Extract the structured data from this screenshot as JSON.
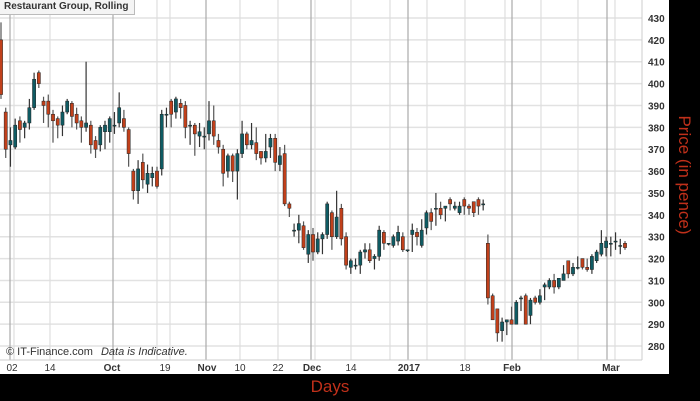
{
  "chart_data": {
    "type": "candlestick",
    "title": "Restaurant Group, Rolling",
    "xlabel": "Days",
    "ylabel": "Price (in pence)",
    "ylim": [
      275,
      432
    ],
    "yticks": [
      280,
      290,
      300,
      310,
      320,
      330,
      340,
      350,
      360,
      370,
      380,
      390,
      400,
      410,
      420,
      430
    ],
    "xticks": [
      "02",
      "14",
      "Oct",
      "19",
      "Nov",
      "10",
      "22",
      "Dec",
      "14",
      "2017",
      "18",
      "Feb",
      "Mar"
    ],
    "xticks_bold": [
      "Oct",
      "Nov",
      "Dec",
      "2017",
      "Feb",
      "Mar"
    ],
    "grid": true,
    "colors": {
      "up": "#0f5b63",
      "down": "#c1401b",
      "wick": "#222222"
    },
    "ohlc_fields": [
      "open",
      "high",
      "low",
      "close"
    ],
    "candles": [
      [
        420,
        428,
        393,
        395
      ],
      [
        387,
        389,
        366,
        370
      ],
      [
        372,
        380,
        362,
        374
      ],
      [
        371,
        384,
        370,
        381
      ],
      [
        383,
        385,
        373,
        379
      ],
      [
        380,
        383,
        375,
        382
      ],
      [
        382,
        393,
        379,
        389
      ],
      [
        389,
        405,
        388,
        402
      ],
      [
        405,
        406,
        398,
        400
      ],
      [
        392,
        394,
        382,
        390
      ],
      [
        392,
        395,
        380,
        386
      ],
      [
        386,
        388,
        373,
        383
      ],
      [
        384,
        385,
        375,
        381
      ],
      [
        381,
        390,
        376,
        387
      ],
      [
        387,
        393,
        386,
        392
      ],
      [
        391,
        392,
        380,
        385
      ],
      [
        386,
        389,
        379,
        382
      ],
      [
        383,
        385,
        373,
        380
      ],
      [
        380,
        410,
        378,
        382
      ],
      [
        381,
        383,
        368,
        372
      ],
      [
        374,
        376,
        366,
        370
      ],
      [
        372,
        381,
        369,
        380
      ],
      [
        378,
        383,
        370,
        381
      ],
      [
        378,
        385,
        373,
        384
      ],
      [
        381,
        387,
        377,
        381
      ],
      [
        382,
        396,
        380,
        389
      ],
      [
        384,
        388,
        378,
        380
      ],
      [
        379,
        380,
        362,
        368
      ],
      [
        360,
        361,
        347,
        351
      ],
      [
        351,
        365,
        345,
        361
      ],
      [
        364,
        368,
        352,
        356
      ],
      [
        354,
        363,
        350,
        359
      ],
      [
        357,
        362,
        353,
        359
      ],
      [
        360,
        362,
        352,
        353
      ],
      [
        361,
        388,
        358,
        386
      ],
      [
        386,
        389,
        380,
        386
      ],
      [
        392,
        393,
        380,
        386
      ],
      [
        387,
        394,
        384,
        393
      ],
      [
        391,
        393,
        384,
        389
      ],
      [
        390,
        392,
        375,
        380
      ],
      [
        381,
        383,
        372,
        381
      ],
      [
        381,
        382,
        367,
        377
      ],
      [
        376,
        382,
        371,
        378
      ],
      [
        376,
        380,
        370,
        376
      ],
      [
        377,
        392,
        374,
        383
      ],
      [
        383,
        390,
        372,
        376
      ],
      [
        374,
        377,
        368,
        371
      ],
      [
        370,
        372,
        353,
        359
      ],
      [
        360,
        368,
        357,
        367
      ],
      [
        367,
        368,
        355,
        360
      ],
      [
        360,
        370,
        347,
        368
      ],
      [
        368,
        383,
        366,
        377
      ],
      [
        377,
        378,
        370,
        372
      ],
      [
        372,
        382,
        370,
        374
      ],
      [
        373,
        380,
        365,
        368
      ],
      [
        369,
        369,
        363,
        366
      ],
      [
        366,
        377,
        364,
        369
      ],
      [
        371,
        377,
        366,
        375
      ],
      [
        375,
        377,
        360,
        364
      ],
      [
        363,
        371,
        360,
        367
      ],
      [
        368,
        372,
        344,
        345
      ],
      [
        345,
        346,
        339,
        343
      ],
      [
        333,
        336,
        330,
        333
      ],
      [
        333,
        340,
        327,
        336
      ],
      [
        335,
        337,
        324,
        325
      ],
      [
        322,
        333,
        318,
        331
      ],
      [
        331,
        334,
        319,
        323
      ],
      [
        323,
        332,
        322,
        329
      ],
      [
        329,
        332,
        322,
        331
      ],
      [
        331,
        346,
        329,
        345
      ],
      [
        341,
        342,
        324,
        330
      ],
      [
        330,
        351,
        329,
        339
      ],
      [
        343,
        345,
        326,
        329
      ],
      [
        330,
        332,
        315,
        317
      ],
      [
        316,
        320,
        313,
        319
      ],
      [
        317,
        320,
        315,
        317
      ],
      [
        317,
        324,
        313,
        323
      ],
      [
        323,
        327,
        320,
        324
      ],
      [
        324,
        327,
        318,
        319
      ],
      [
        320,
        322,
        315,
        321
      ],
      [
        321,
        335,
        319,
        333
      ],
      [
        332,
        333,
        324,
        327
      ],
      [
        327,
        327,
        326,
        327
      ],
      [
        326,
        331,
        325,
        330
      ],
      [
        328,
        335,
        326,
        332
      ],
      [
        330,
        332,
        323,
        324
      ],
      [
        324,
        324,
        323,
        324
      ],
      [
        331,
        336,
        323,
        333
      ],
      [
        332,
        334,
        326,
        330
      ],
      [
        326,
        338,
        325,
        333
      ],
      [
        334,
        342,
        331,
        341
      ],
      [
        341,
        343,
        333,
        337
      ],
      [
        343,
        350,
        335,
        343
      ],
      [
        343,
        346,
        338,
        340
      ],
      [
        343,
        344,
        337,
        344
      ],
      [
        347,
        348,
        342,
        345
      ],
      [
        343,
        346,
        342,
        344
      ],
      [
        341,
        346,
        340,
        344
      ],
      [
        347,
        348,
        340,
        344
      ],
      [
        344,
        345,
        340,
        343
      ],
      [
        346,
        346,
        339,
        341
      ],
      [
        347,
        348,
        340,
        344
      ],
      [
        345,
        347,
        342,
        345
      ],
      [
        327,
        331,
        299,
        302
      ],
      [
        303,
        304,
        292,
        292
      ],
      [
        297,
        297,
        282,
        286
      ],
      [
        287,
        293,
        282,
        291
      ],
      [
        291,
        292,
        285,
        292
      ],
      [
        292,
        298,
        290,
        290
      ],
      [
        290,
        301,
        290,
        300
      ],
      [
        302,
        303,
        296,
        302
      ],
      [
        303,
        304,
        290,
        290
      ],
      [
        294,
        302,
        290,
        301
      ],
      [
        302,
        303,
        299,
        300
      ],
      [
        300,
        306,
        299,
        303
      ],
      [
        307,
        309,
        301,
        308
      ],
      [
        307,
        311,
        306,
        310
      ],
      [
        310,
        313,
        304,
        307
      ],
      [
        307,
        311,
        306,
        311
      ],
      [
        310,
        317,
        310,
        313
      ],
      [
        319,
        319,
        311,
        313
      ],
      [
        313,
        318,
        312,
        316
      ],
      [
        316,
        321,
        315,
        316
      ],
      [
        320,
        320,
        315,
        316
      ],
      [
        316,
        320,
        314,
        315
      ],
      [
        315,
        322,
        313,
        321
      ],
      [
        319,
        324,
        318,
        323
      ],
      [
        322,
        333,
        321,
        327
      ],
      [
        325,
        330,
        321,
        328
      ],
      [
        327,
        330,
        321,
        327
      ],
      [
        328,
        332,
        324,
        328
      ],
      [
        326,
        329,
        322,
        326
      ],
      [
        327,
        328,
        324,
        325
      ]
    ],
    "credit": "© IT-Finance.com",
    "disclaimer": "Data is Indicative."
  }
}
